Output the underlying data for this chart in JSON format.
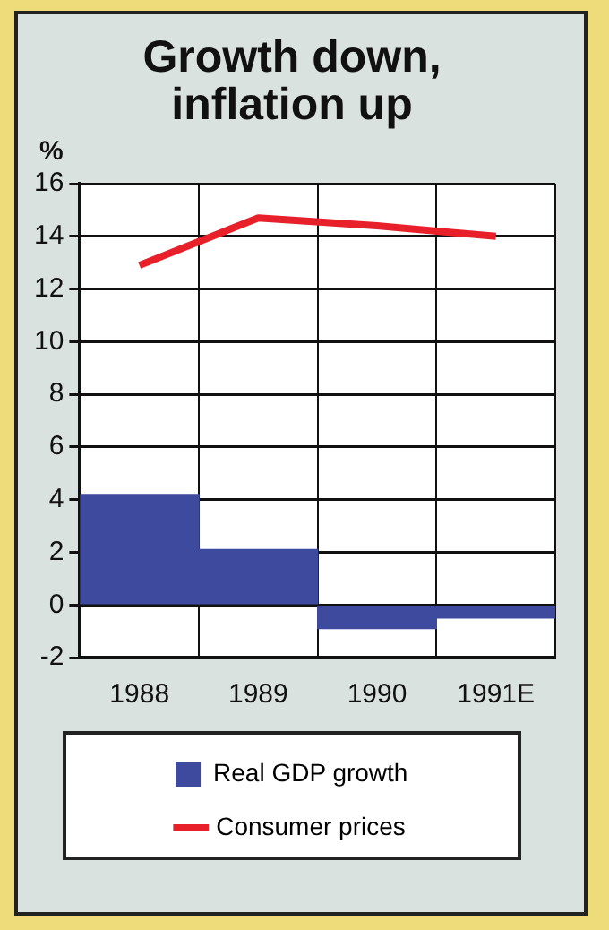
{
  "chart_data": {
    "type": "bar",
    "title": [
      "Growth down,",
      "inflation up"
    ],
    "ylabel": "%",
    "categories": [
      "1988",
      "1989",
      "1990",
      "1991E"
    ],
    "series": [
      {
        "name": "Real GDP growth",
        "color": "#3d4a9e",
        "values": [
          4.2,
          2.1,
          -0.9,
          -0.5
        ]
      },
      {
        "name": "Consumer prices",
        "type": "line",
        "color": "#e8202a",
        "values": [
          12.9,
          14.7,
          14.4,
          14.0
        ]
      }
    ],
    "ylim": [
      -2,
      16
    ],
    "yticks": [
      -2,
      0,
      2,
      4,
      6,
      8,
      10,
      12,
      14,
      16
    ],
    "grid": true,
    "legend": "bottom",
    "marker": "none"
  }
}
